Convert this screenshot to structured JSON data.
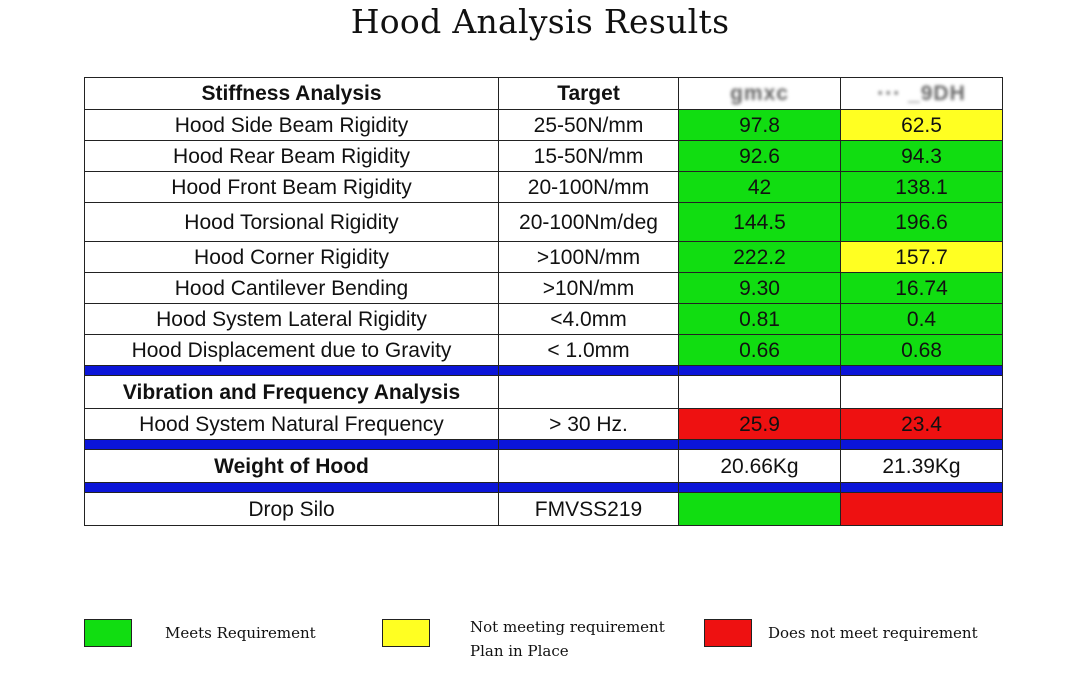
{
  "title": "Hood Analysis Results",
  "colors": {
    "meets": "#11dd11",
    "plan": "#ffff22",
    "fails": "#ee1111",
    "separator": "#0b15d8"
  },
  "table": {
    "header": {
      "analysis": "Stiffness  Analysis",
      "target": "Target",
      "col_a": "gmxc",
      "col_b": "···  _9DH"
    },
    "stiffness_rows": [
      {
        "label": "Hood Side Beam Rigidity",
        "target": "25-50N/mm",
        "a": "97.8",
        "a_status": "meets",
        "b": "62.5",
        "b_status": "plan"
      },
      {
        "label": "Hood Rear Beam Rigidity",
        "target": "15-50N/mm",
        "a": "92.6",
        "a_status": "meets",
        "b": "94.3",
        "b_status": "meets"
      },
      {
        "label": "Hood Front Beam Rigidity",
        "target": "20-100N/mm",
        "a": "42",
        "a_status": "meets",
        "b": "138.1",
        "b_status": "meets"
      },
      {
        "label": "Hood Torsional Rigidity",
        "target": "20-100Nm/deg",
        "a": "144.5",
        "a_status": "meets",
        "b": "196.6",
        "b_status": "meets"
      },
      {
        "label": "Hood Corner Rigidity",
        "target": ">100N/mm",
        "a": "222.2",
        "a_status": "meets",
        "b": "157.7",
        "b_status": "plan"
      },
      {
        "label": "Hood Cantilever Bending",
        "target": ">10N/mm",
        "a": "9.30",
        "a_status": "meets",
        "b": "16.74",
        "b_status": "meets"
      },
      {
        "label": "Hood System Lateral Rigidity",
        "target": "<4.0mm",
        "a": "0.81",
        "a_status": "meets",
        "b": "0.4",
        "b_status": "meets"
      },
      {
        "label": "Hood Displacement due to Gravity",
        "target": "< 1.0mm",
        "a": "0.66",
        "a_status": "meets",
        "b": "0.68",
        "b_status": "meets"
      }
    ],
    "vibration": {
      "section_label": "Vibration and Frequency Analysis",
      "row": {
        "label": "Hood System Natural Frequency",
        "target": "> 30 Hz.",
        "a": "25.9",
        "b": "23.4"
      }
    },
    "weight": {
      "label": "Weight of Hood",
      "a": "20.66Kg",
      "b": "21.39Kg"
    },
    "drop": {
      "label": "Drop Silo",
      "target": "FMVSS219"
    }
  },
  "legend": {
    "meets": "Meets Requirement",
    "plan_line1": "Not meeting requirement",
    "plan_line2": "Plan in Place",
    "fails": "Does not meet requirement"
  }
}
